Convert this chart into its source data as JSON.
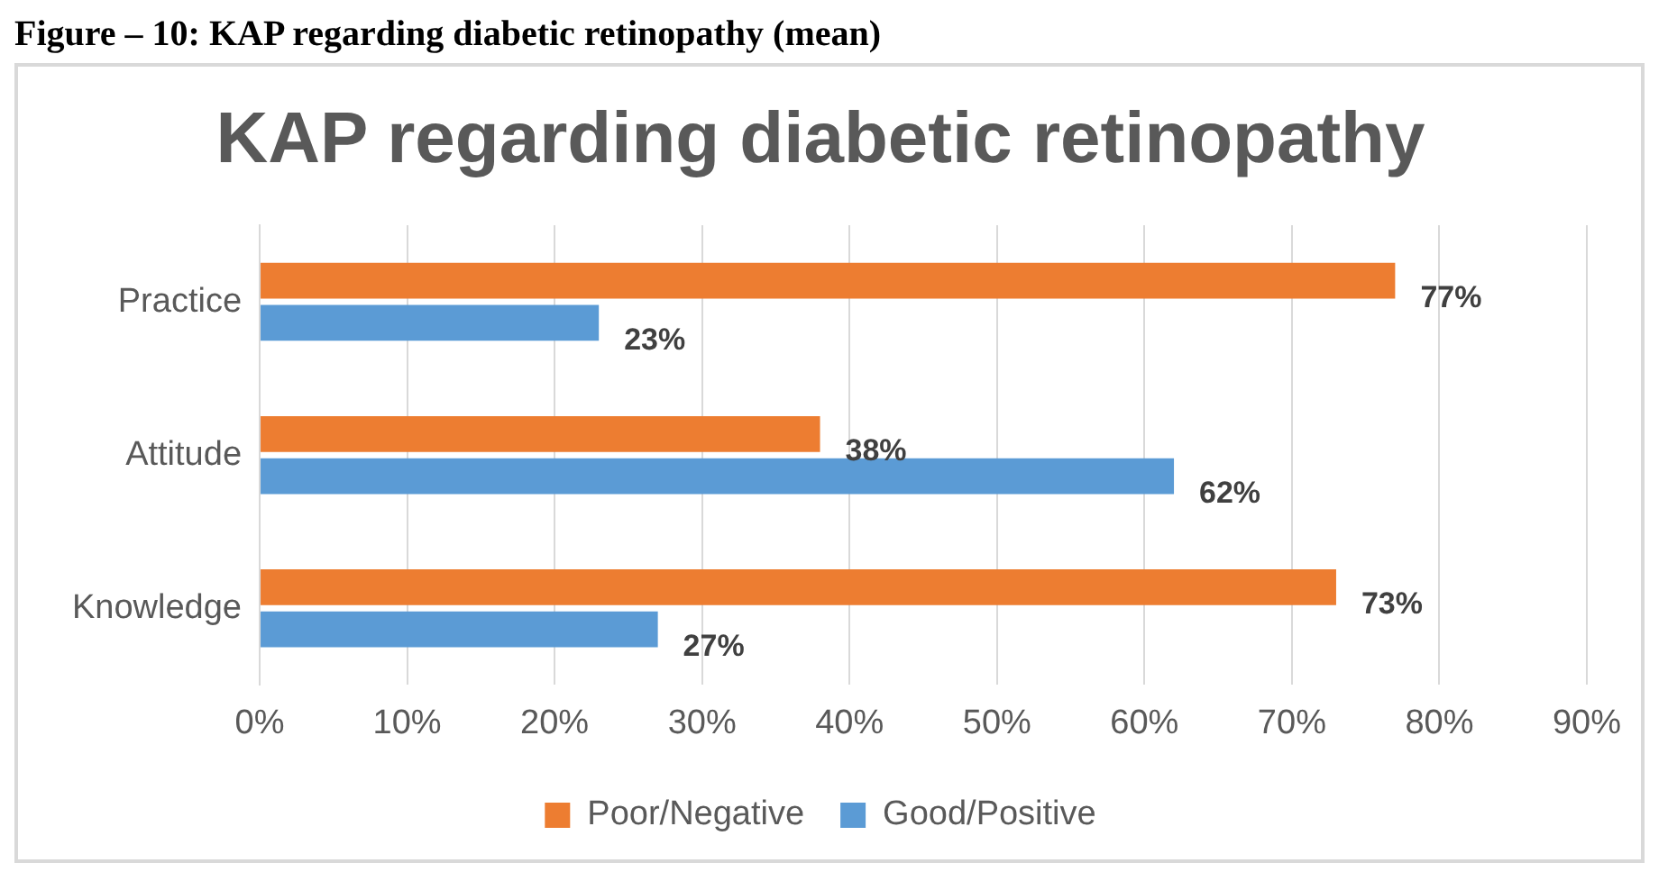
{
  "chart_data": {
    "type": "bar",
    "orientation": "horizontal",
    "title": "KAP regarding diabetic retinopathy",
    "annotations": [
      "Figure – 10: KAP regarding diabetic retinopathy (mean)"
    ],
    "categories": [
      "Practice",
      "Attitude",
      "Knowledge"
    ],
    "series": [
      {
        "name": "Poor/Negative",
        "color": "#ed7d31",
        "values": [
          77,
          38,
          73
        ],
        "value_labels": [
          "77%",
          "38%",
          "73%"
        ]
      },
      {
        "name": "Good/Positive",
        "color": "#5b9bd5",
        "values": [
          23,
          62,
          27
        ],
        "value_labels": [
          "23%",
          "62%",
          "27%"
        ]
      }
    ],
    "xlim": [
      0,
      90
    ],
    "xticks": [
      {
        "value": 0,
        "label": "0%"
      },
      {
        "value": 10,
        "label": "10%"
      },
      {
        "value": 20,
        "label": "20%"
      },
      {
        "value": 30,
        "label": "30%"
      },
      {
        "value": 40,
        "label": "40%"
      },
      {
        "value": 50,
        "label": "50%"
      },
      {
        "value": 60,
        "label": "60%"
      },
      {
        "value": 70,
        "label": "70%"
      },
      {
        "value": 80,
        "label": "80%"
      },
      {
        "value": 90,
        "label": "90%"
      }
    ],
    "grid": "x",
    "legend": "bottom"
  }
}
